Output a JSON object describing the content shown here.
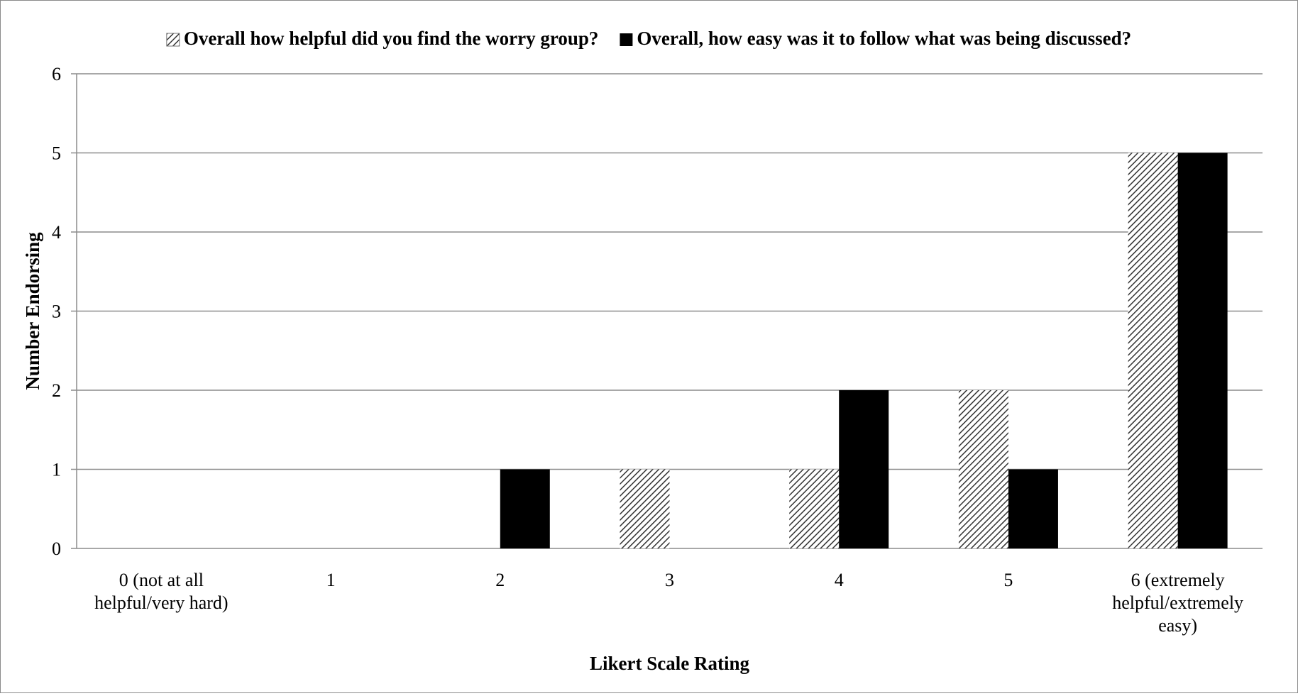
{
  "chart_data": {
    "type": "bar",
    "categories": [
      [
        "0 (not at all",
        "helpful/very hard)"
      ],
      [
        "1"
      ],
      [
        "2"
      ],
      [
        "3"
      ],
      [
        "4"
      ],
      [
        "5"
      ],
      [
        "6 (extremely",
        "helpful/extremely",
        "easy)"
      ]
    ],
    "series": [
      {
        "name": "Overall how helpful did you find the worry group?",
        "values": [
          0,
          0,
          0,
          1,
          1,
          2,
          5
        ],
        "fill": "hatched"
      },
      {
        "name": "Overall, how easy was it to follow what was being discussed?",
        "values": [
          0,
          0,
          1,
          0,
          2,
          1,
          5
        ],
        "fill": "#000000"
      }
    ],
    "title": "",
    "xlabel": "Likert Scale Rating",
    "ylabel": "Number Endorsing",
    "ylim": [
      0,
      6
    ],
    "yticks": [
      0,
      1,
      2,
      3,
      4,
      5,
      6
    ],
    "grid": true,
    "legend_position": "top"
  },
  "colors": {
    "gridline": "#8c8c8c",
    "hatch_line": "#333333",
    "solid_bar": "#000000"
  }
}
